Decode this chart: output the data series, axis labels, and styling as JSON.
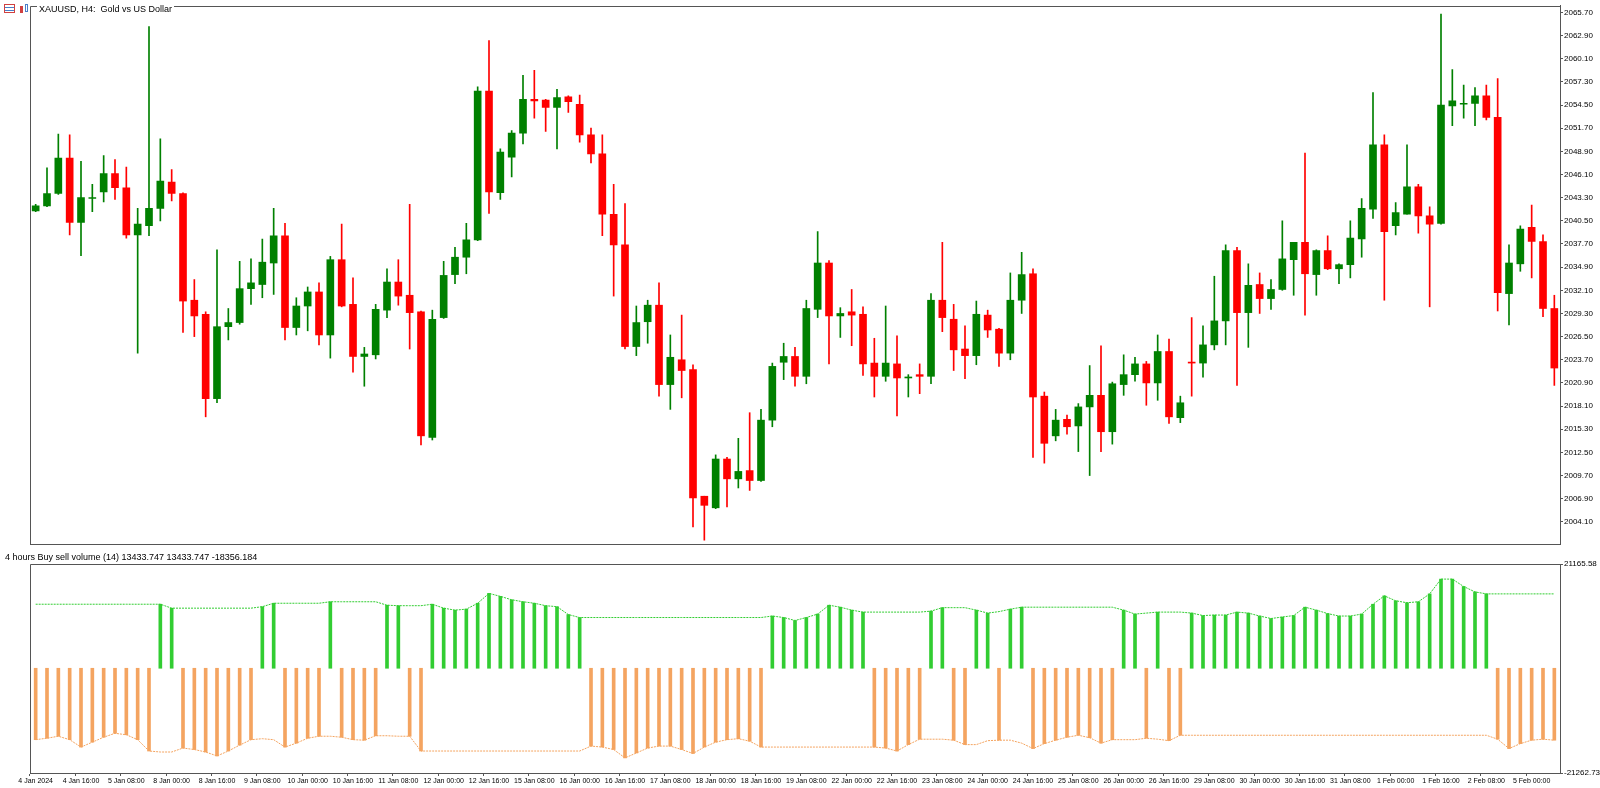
{
  "chart_data": [
    {
      "type": "candlestick",
      "title": "XAUUSD, H4:  Gold vs US Dollar",
      "ohlc": [
        [
          2041.7,
          2042.5,
          2041.6,
          2042.3
        ],
        [
          2042.3,
          2046.9,
          2042.2,
          2043.8
        ],
        [
          2043.8,
          2051.0,
          2043.7,
          2048.1
        ],
        [
          2048.1,
          2050.9,
          2038.8,
          2040.3
        ],
        [
          2040.3,
          2047.7,
          2036.3,
          2043.3
        ],
        [
          2043.2,
          2044.9,
          2041.6,
          2043.3
        ],
        [
          2044.0,
          2048.4,
          2042.8,
          2046.2
        ],
        [
          2046.2,
          2047.9,
          2043.1,
          2044.5
        ],
        [
          2044.5,
          2047.0,
          2038.4,
          2038.8
        ],
        [
          2038.8,
          2042.0,
          2024.5,
          2040.1
        ],
        [
          2039.9,
          2064.0,
          2038.7,
          2042.0
        ],
        [
          2042.0,
          2050.4,
          2040.5,
          2045.3
        ],
        [
          2045.2,
          2046.7,
          2042.9,
          2043.8
        ],
        [
          2043.8,
          2043.9,
          2027.0,
          2030.8
        ],
        [
          2030.9,
          2033.4,
          2026.5,
          2029.0
        ],
        [
          2029.2,
          2029.5,
          2016.8,
          2019.0
        ],
        [
          2019.0,
          2037.0,
          2018.5,
          2027.7
        ],
        [
          2027.7,
          2029.9,
          2026.1,
          2028.2
        ],
        [
          2028.2,
          2035.6,
          2028.0,
          2032.3
        ],
        [
          2032.3,
          2035.9,
          2030.4,
          2033.0
        ],
        [
          2032.8,
          2038.3,
          2031.2,
          2035.5
        ],
        [
          2035.4,
          2042.0,
          2031.6,
          2038.7
        ],
        [
          2038.7,
          2040.2,
          2026.1,
          2027.6
        ],
        [
          2027.6,
          2031.2,
          2026.7,
          2030.2
        ],
        [
          2030.2,
          2032.5,
          2027.2,
          2031.9
        ],
        [
          2031.9,
          2033.0,
          2025.5,
          2026.7
        ],
        [
          2026.7,
          2036.2,
          2023.9,
          2035.8
        ],
        [
          2035.8,
          2040.1,
          2030.1,
          2030.2
        ],
        [
          2030.4,
          2033.6,
          2022.2,
          2024.1
        ],
        [
          2024.1,
          2025.2,
          2020.5,
          2024.4
        ],
        [
          2024.3,
          2030.4,
          2023.8,
          2029.8
        ],
        [
          2029.7,
          2034.7,
          2028.8,
          2033.1
        ],
        [
          2033.1,
          2035.8,
          2030.3,
          2031.4
        ],
        [
          2031.5,
          2042.5,
          2025.0,
          2029.4
        ],
        [
          2029.5,
          2029.6,
          2013.4,
          2014.5
        ],
        [
          2014.3,
          2029.7,
          2014.0,
          2028.6
        ],
        [
          2028.8,
          2035.6,
          2028.7,
          2033.9
        ],
        [
          2034.0,
          2037.3,
          2032.9,
          2036.1
        ],
        [
          2036.1,
          2040.2,
          2034.1,
          2038.2
        ],
        [
          2038.2,
          2056.7,
          2038.1,
          2056.2
        ],
        [
          2056.2,
          2062.3,
          2041.4,
          2044.0
        ],
        [
          2043.9,
          2049.2,
          2043.1,
          2048.8
        ],
        [
          2048.2,
          2051.4,
          2045.8,
          2051.1
        ],
        [
          2051.1,
          2058.1,
          2049.8,
          2055.2
        ],
        [
          2055.2,
          2058.7,
          2052.9,
          2055.0
        ],
        [
          2055.1,
          2055.2,
          2051.3,
          2054.2
        ],
        [
          2054.2,
          2056.4,
          2049.2,
          2055.4
        ],
        [
          2055.5,
          2055.6,
          2053.6,
          2054.9
        ],
        [
          2054.6,
          2055.7,
          2050.0,
          2050.9
        ],
        [
          2050.9,
          2051.7,
          2047.5,
          2048.6
        ],
        [
          2048.6,
          2050.9,
          2038.7,
          2041.3
        ],
        [
          2041.3,
          2044.9,
          2031.4,
          2037.6
        ],
        [
          2037.6,
          2042.6,
          2025.0,
          2025.3
        ],
        [
          2025.3,
          2030.2,
          2024.2,
          2028.2
        ],
        [
          2028.3,
          2030.9,
          2025.7,
          2030.3
        ],
        [
          2030.3,
          2033.0,
          2019.3,
          2020.7
        ],
        [
          2020.7,
          2026.7,
          2017.7,
          2024.0
        ],
        [
          2023.7,
          2029.1,
          2019.1,
          2022.4
        ],
        [
          2022.5,
          2023.1,
          2003.5,
          2007.0
        ],
        [
          2007.2,
          2007.2,
          2001.9,
          2006.1
        ],
        [
          2005.8,
          2012.2,
          2005.7,
          2011.7
        ],
        [
          2011.7,
          2011.9,
          2005.9,
          2009.3
        ],
        [
          2009.3,
          2014.2,
          2008.2,
          2010.2
        ],
        [
          2010.3,
          2017.3,
          2007.9,
          2009.1
        ],
        [
          2009.1,
          2017.7,
          2009.0,
          2016.4
        ],
        [
          2016.4,
          2023.3,
          2015.6,
          2022.9
        ],
        [
          2023.4,
          2025.7,
          2021.3,
          2024.1
        ],
        [
          2024.1,
          2025.2,
          2020.5,
          2021.7
        ],
        [
          2021.7,
          2030.9,
          2020.8,
          2029.9
        ],
        [
          2029.8,
          2039.2,
          2028.8,
          2035.4
        ],
        [
          2035.4,
          2035.7,
          2023.2,
          2029.0
        ],
        [
          2029.0,
          2030.0,
          2026.4,
          2029.3
        ],
        [
          2029.5,
          2032.2,
          2025.4,
          2029.1
        ],
        [
          2029.2,
          2030.1,
          2021.8,
          2023.2
        ],
        [
          2023.3,
          2026.3,
          2019.2,
          2021.7
        ],
        [
          2021.7,
          2030.2,
          2021.1,
          2023.3
        ],
        [
          2023.2,
          2026.6,
          2016.9,
          2021.5
        ],
        [
          2021.5,
          2021.9,
          2019.2,
          2021.6
        ],
        [
          2021.9,
          2023.2,
          2019.6,
          2021.7
        ],
        [
          2021.7,
          2031.7,
          2020.8,
          2030.9
        ],
        [
          2030.9,
          2037.9,
          2027.1,
          2028.8
        ],
        [
          2028.6,
          2030.4,
          2022.4,
          2024.9
        ],
        [
          2025.0,
          2027.8,
          2021.4,
          2024.2
        ],
        [
          2024.2,
          2030.8,
          2023.1,
          2029.2
        ],
        [
          2029.1,
          2029.7,
          2026.4,
          2027.3
        ],
        [
          2027.4,
          2027.5,
          2022.9,
          2024.5
        ],
        [
          2024.5,
          2034.2,
          2023.7,
          2030.9
        ],
        [
          2030.9,
          2036.7,
          2029.3,
          2034.0
        ],
        [
          2034.1,
          2034.7,
          2011.9,
          2019.2
        ],
        [
          2019.3,
          2019.8,
          2011.2,
          2013.6
        ],
        [
          2014.5,
          2017.7,
          2013.9,
          2016.4
        ],
        [
          2016.5,
          2017.0,
          2014.7,
          2015.6
        ],
        [
          2015.7,
          2018.4,
          2012.6,
          2018.0
        ],
        [
          2018.0,
          2023.0,
          2009.7,
          2019.4
        ],
        [
          2019.4,
          2025.4,
          2012.6,
          2015.0
        ],
        [
          2015.0,
          2021.0,
          2013.5,
          2020.8
        ],
        [
          2020.7,
          2024.3,
          2019.4,
          2021.9
        ],
        [
          2021.9,
          2024.0,
          2021.1,
          2023.2
        ],
        [
          2023.2,
          2023.5,
          2018.2,
          2020.9
        ],
        [
          2020.9,
          2026.7,
          2018.8,
          2024.7
        ],
        [
          2024.7,
          2026.2,
          2016.0,
          2016.8
        ],
        [
          2016.7,
          2019.3,
          2016.1,
          2018.5
        ],
        [
          2023.4,
          2028.8,
          2019.3,
          2023.3
        ],
        [
          2023.3,
          2027.8,
          2021.6,
          2025.5
        ],
        [
          2025.5,
          2033.8,
          2024.9,
          2028.4
        ],
        [
          2028.4,
          2037.6,
          2025.5,
          2036.9
        ],
        [
          2036.9,
          2037.3,
          2020.6,
          2029.4
        ],
        [
          2029.4,
          2035.3,
          2025.2,
          2032.7
        ],
        [
          2032.8,
          2034.2,
          2029.3,
          2031.1
        ],
        [
          2031.1,
          2033.4,
          2029.8,
          2032.2
        ],
        [
          2032.2,
          2040.5,
          2032.1,
          2035.9
        ],
        [
          2035.8,
          2037.9,
          2031.5,
          2037.9
        ],
        [
          2037.9,
          2048.7,
          2029.1,
          2034.1
        ],
        [
          2034.0,
          2037.0,
          2031.5,
          2036.9
        ],
        [
          2036.9,
          2038.7,
          2034.6,
          2034.7
        ],
        [
          2034.7,
          2035.3,
          2032.9,
          2035.2
        ],
        [
          2035.2,
          2040.5,
          2033.6,
          2038.4
        ],
        [
          2038.3,
          2043.2,
          2036.1,
          2042.0
        ],
        [
          2041.9,
          2056.0,
          2040.8,
          2049.7
        ],
        [
          2049.7,
          2050.9,
          2030.9,
          2039.2
        ],
        [
          2039.9,
          2042.7,
          2038.8,
          2041.5
        ],
        [
          2041.3,
          2049.7,
          2041.3,
          2044.6
        ],
        [
          2044.6,
          2044.9,
          2039.0,
          2041.1
        ],
        [
          2041.1,
          2042.2,
          2030.1,
          2040.1
        ],
        [
          2040.2,
          2065.5,
          2040.1,
          2054.5
        ],
        [
          2054.4,
          2058.8,
          2052.0,
          2055.0
        ],
        [
          2054.6,
          2056.9,
          2052.9,
          2054.7
        ],
        [
          2054.7,
          2056.6,
          2052.0,
          2055.6
        ],
        [
          2055.6,
          2056.9,
          2052.7,
          2053.0
        ],
        [
          2053.0,
          2057.7,
          2029.6,
          2031.8
        ],
        [
          2031.7,
          2037.6,
          2027.9,
          2035.4
        ],
        [
          2035.3,
          2039.9,
          2034.4,
          2039.5
        ],
        [
          2039.7,
          2042.4,
          2033.6,
          2038.0
        ],
        [
          2038.0,
          2038.8,
          2028.9,
          2029.9
        ],
        [
          2029.9,
          2031.5,
          2020.6,
          2022.7
        ]
      ],
      "colors": [
        "#008000",
        "#008000",
        "#008000",
        "#ff0000",
        "#008000",
        "#008000",
        "#008000",
        "#ff0000",
        "#ff0000",
        "#008000",
        "#008000",
        "#008000",
        "#ff0000",
        "#ff0000",
        "#ff0000",
        "#ff0000",
        "#008000",
        "#008000",
        "#008000",
        "#008000",
        "#008000",
        "#008000",
        "#ff0000",
        "#008000",
        "#008000",
        "#ff0000",
        "#008000",
        "#ff0000",
        "#ff0000",
        "#008000",
        "#008000",
        "#008000",
        "#ff0000",
        "#ff0000",
        "#ff0000",
        "#008000",
        "#008000",
        "#008000",
        "#008000",
        "#008000",
        "#ff0000",
        "#008000",
        "#008000",
        "#008000",
        "#ff0000",
        "#ff0000",
        "#008000",
        "#ff0000",
        "#ff0000",
        "#ff0000",
        "#ff0000",
        "#ff0000",
        "#ff0000",
        "#008000",
        "#008000",
        "#ff0000",
        "#008000",
        "#ff0000",
        "#ff0000",
        "#ff0000",
        "#008000",
        "#ff0000",
        "#008000",
        "#ff0000",
        "#008000",
        "#008000",
        "#008000",
        "#ff0000",
        "#008000",
        "#008000",
        "#ff0000",
        "#008000",
        "#ff0000",
        "#ff0000",
        "#ff0000",
        "#008000",
        "#ff0000",
        "#008000",
        "#ff0000",
        "#008000",
        "#ff0000",
        "#ff0000",
        "#ff0000",
        "#008000",
        "#ff0000",
        "#ff0000",
        "#008000",
        "#008000",
        "#ff0000",
        "#ff0000",
        "#008000",
        "#ff0000",
        "#008000",
        "#008000",
        "#ff0000",
        "#008000",
        "#008000",
        "#008000",
        "#ff0000",
        "#008000",
        "#ff0000",
        "#008000",
        "#ff0000",
        "#008000",
        "#008000",
        "#008000",
        "#ff0000",
        "#008000",
        "#ff0000",
        "#008000",
        "#008000",
        "#008000",
        "#ff0000",
        "#008000",
        "#ff0000",
        "#008000",
        "#008000",
        "#008000",
        "#008000",
        "#ff0000",
        "#008000",
        "#008000",
        "#ff0000",
        "#ff0000",
        "#008000",
        "#008000",
        "#008000",
        "#008000",
        "#ff0000",
        "#ff0000",
        "#008000",
        "#008000",
        "#ff0000",
        "#ff0000",
        "#ff0000"
      ],
      "ylim": [
        2001.4,
        2066.5
      ],
      "yticks": [
        {
          "value": 2004.1,
          "label": "2004.10"
        },
        {
          "value": 2006.9,
          "label": "2006.90"
        },
        {
          "value": 2009.7,
          "label": "2009.70"
        },
        {
          "value": 2012.5,
          "label": "2012.50"
        },
        {
          "value": 2015.3,
          "label": "2015.30"
        },
        {
          "value": 2018.1,
          "label": "2018.10"
        },
        {
          "value": 2020.9,
          "label": "2020.90"
        },
        {
          "value": 2023.7,
          "label": "2023.70"
        },
        {
          "value": 2026.5,
          "label": "2026.50"
        },
        {
          "value": 2029.3,
          "label": "2029.30"
        },
        {
          "value": 2032.1,
          "label": "2032.10"
        },
        {
          "value": 2034.9,
          "label": "2034.90"
        },
        {
          "value": 2037.7,
          "label": "2037.70"
        },
        {
          "value": 2040.5,
          "label": "2040.50"
        },
        {
          "value": 2043.3,
          "label": "2043.30"
        },
        {
          "value": 2046.1,
          "label": "2046.10"
        },
        {
          "value": 2048.9,
          "label": "2048.90"
        },
        {
          "value": 2051.7,
          "label": "2051.70"
        },
        {
          "value": 2054.5,
          "label": "2054.50"
        },
        {
          "value": 2057.3,
          "label": "2057.30"
        },
        {
          "value": 2060.1,
          "label": "2060.10"
        },
        {
          "value": 2062.9,
          "label": "2062.90"
        },
        {
          "value": 2065.7,
          "label": "2065.70"
        }
      ],
      "tick_labels": "y"
    },
    {
      "type": "bar",
      "title": "4 hours Buy sell volume (14) 13433.747 13433.747 -18356.184",
      "categories": [
        "4 Jan 2024",
        null,
        null,
        null,
        "4 Jan 16:00",
        null,
        null,
        null,
        "5 Jan 08:00",
        null,
        null,
        null,
        "8 Jan 00:00",
        null,
        null,
        null,
        "8 Jan 16:00",
        null,
        null,
        null,
        "9 Jan 08:00",
        null,
        null,
        null,
        "10 Jan 00:00",
        null,
        null,
        null,
        "10 Jan 16:00",
        null,
        null,
        null,
        "11 Jan 08:00",
        null,
        null,
        null,
        "12 Jan 00:00",
        null,
        null,
        null,
        "12 Jan 16:00",
        null,
        null,
        null,
        "15 Jan 08:00",
        null,
        null,
        null,
        "16 Jan 00:00",
        null,
        null,
        null,
        "16 Jan 16:00",
        null,
        null,
        null,
        "17 Jan 08:00",
        null,
        null,
        null,
        "18 Jan 00:00",
        null,
        null,
        null,
        "18 Jan 16:00",
        null,
        null,
        null,
        "19 Jan 08:00",
        null,
        null,
        null,
        "22 Jan 00:00",
        null,
        null,
        null,
        "22 Jan 16:00",
        null,
        null,
        null,
        "23 Jan 08:00",
        null,
        null,
        null,
        "24 Jan 00:00",
        null,
        null,
        null,
        "24 Jan 16:00",
        null,
        null,
        null,
        "25 Jan 08:00",
        null,
        null,
        null,
        "26 Jan 00:00",
        null,
        null,
        null,
        "26 Jan 16:00",
        null,
        null,
        null,
        "29 Jan 08:00",
        null,
        null,
        null,
        "30 Jan 00:00",
        null,
        null,
        null,
        "30 Jan 16:00",
        null,
        null,
        null,
        "31 Jan 08:00",
        null,
        null,
        null,
        "1 Feb 00:00",
        null,
        null,
        null,
        "1 Feb 16:00",
        null,
        null,
        null,
        "2 Feb 08:00",
        null,
        null,
        null,
        "5 Feb 00:00",
        null,
        null
      ],
      "series": [
        {
          "type": "bar",
          "color": "#32cd32",
          "values": [
            null,
            null,
            null,
            null,
            null,
            null,
            null,
            null,
            null,
            null,
            null,
            13000,
            12200,
            null,
            null,
            null,
            null,
            null,
            null,
            null,
            12500,
            13200,
            null,
            null,
            null,
            null,
            13500,
            null,
            null,
            null,
            null,
            12800,
            12700,
            null,
            null,
            13000,
            12200,
            11800,
            12000,
            13200,
            15200,
            14600,
            13900,
            13500,
            13200,
            12700,
            12500,
            10900,
            10300,
            null,
            null,
            null,
            null,
            null,
            null,
            null,
            null,
            null,
            null,
            null,
            null,
            null,
            null,
            null,
            null,
            10600,
            10300,
            9700,
            10300,
            11000,
            12800,
            12400,
            11800,
            11400,
            null,
            null,
            null,
            null,
            null,
            11600,
            12300,
            null,
            null,
            11800,
            11200,
            null,
            12000,
            12400,
            null,
            null,
            null,
            null,
            null,
            null,
            null,
            null,
            11800,
            11000,
            null,
            11400,
            null,
            null,
            11200,
            10700,
            10800,
            10800,
            11400,
            11200,
            10600,
            10100,
            10400,
            10700,
            12400,
            11800,
            11100,
            10600,
            10600,
            11000,
            13000,
            14700,
            13700,
            13300,
            13500,
            15100,
            18100,
            18100,
            16600,
            15500,
            15100,
            null,
            null,
            null,
            null,
            null,
            null
          ]
        },
        {
          "type": "bar",
          "color": "#f4a460",
          "values": [
            -14500,
            -14200,
            -13800,
            -14500,
            -16000,
            -15000,
            -14000,
            -13200,
            -13500,
            -14500,
            -16800,
            null,
            null,
            -16200,
            -16500,
            -17000,
            -17800,
            -16800,
            -15600,
            -14500,
            null,
            null,
            -16000,
            -15200,
            -14200,
            -13800,
            null,
            -14000,
            -14500,
            -14600,
            -13700,
            null,
            null,
            -13800,
            -16800,
            null,
            null,
            null,
            null,
            null,
            null,
            null,
            null,
            null,
            null,
            null,
            null,
            null,
            null,
            -15800,
            -16000,
            -16500,
            -18200,
            -17200,
            -16200,
            -15800,
            -15800,
            -16500,
            -17300,
            -16000,
            -15000,
            -14500,
            -14300,
            -14800,
            -16000,
            null,
            null,
            null,
            null,
            null,
            null,
            null,
            null,
            null,
            -16000,
            -16200,
            -16800,
            -15500,
            -14400,
            null,
            null,
            -14600,
            -15500,
            null,
            null,
            -14600,
            null,
            null,
            -16300,
            -15300,
            -14600,
            -14000,
            -13600,
            -14100,
            -15200,
            -14500,
            null,
            null,
            -14200,
            null,
            -14700,
            -13600,
            null,
            null,
            null,
            null,
            null,
            null,
            null,
            null,
            null,
            null,
            null,
            null,
            null,
            null,
            null,
            null,
            null,
            null,
            null,
            null,
            null,
            null,
            null,
            null,
            null,
            null,
            null,
            -14400,
            -16300,
            -15300,
            -14600,
            -14400,
            -14600
          ]
        },
        {
          "type": "line",
          "color": "#32cd32",
          "line_style": "dashed",
          "values": [
            13000,
            13000,
            13000,
            13000,
            13000,
            13000,
            13000,
            13000,
            13000,
            13000,
            13000,
            13000,
            12200,
            12200,
            12200,
            12200,
            12200,
            12200,
            12200,
            12200,
            12500,
            13200,
            13200,
            13200,
            13200,
            13200,
            13500,
            13500,
            13500,
            13500,
            13500,
            12800,
            12700,
            12700,
            12700,
            13000,
            12200,
            11800,
            12000,
            13200,
            15200,
            14600,
            13900,
            13500,
            13200,
            12700,
            12500,
            10900,
            10300,
            10300,
            10300,
            10300,
            10300,
            10300,
            10300,
            10300,
            10300,
            10300,
            10300,
            10300,
            10300,
            10300,
            10300,
            10300,
            10300,
            10600,
            10300,
            9700,
            10300,
            11000,
            12800,
            12400,
            11800,
            11400,
            11400,
            11400,
            11400,
            11400,
            11400,
            11600,
            12300,
            12300,
            12300,
            11800,
            11200,
            11500,
            12000,
            12400,
            12400,
            12400,
            12400,
            12400,
            12400,
            12400,
            12400,
            12400,
            11800,
            11000,
            11200,
            11400,
            11400,
            11400,
            11200,
            10700,
            10800,
            10800,
            11400,
            11200,
            10600,
            10100,
            10400,
            10700,
            12400,
            11800,
            11100,
            10600,
            10600,
            11000,
            13000,
            14700,
            13700,
            13300,
            13500,
            15100,
            18100,
            18100,
            16600,
            15500,
            15100,
            15100,
            15100,
            15100,
            15100,
            15100,
            15100
          ]
        },
        {
          "type": "line",
          "color": "#f4a460",
          "line_style": "dashed",
          "values": [
            -14500,
            -14200,
            -13800,
            -14500,
            -16000,
            -15000,
            -14000,
            -13200,
            -13500,
            -14500,
            -16800,
            -17000,
            -17000,
            -16200,
            -16500,
            -17000,
            -17800,
            -16800,
            -15600,
            -14500,
            -14300,
            -14500,
            -16000,
            -15200,
            -14200,
            -13800,
            -13800,
            -14000,
            -14500,
            -14600,
            -13700,
            -13700,
            -13800,
            -13800,
            -16800,
            -16800,
            -16800,
            -16800,
            -16800,
            -16800,
            -16800,
            -16800,
            -16800,
            -16800,
            -16800,
            -16800,
            -16800,
            -16800,
            -16800,
            -15800,
            -16000,
            -16500,
            -18200,
            -17200,
            -16200,
            -15800,
            -15800,
            -16500,
            -17300,
            -16000,
            -15000,
            -14500,
            -14300,
            -14800,
            -16000,
            -16000,
            -16000,
            -16000,
            -16000,
            -16000,
            -16000,
            -16000,
            -16000,
            -16000,
            -16000,
            -16200,
            -16800,
            -15500,
            -14400,
            -14400,
            -14400,
            -14600,
            -15500,
            -15500,
            -14700,
            -14600,
            -14600,
            -15200,
            -16300,
            -15300,
            -14600,
            -14000,
            -13600,
            -14100,
            -15200,
            -14500,
            -14500,
            -14500,
            -14200,
            -14400,
            -14700,
            -13600,
            -13600,
            -13600,
            -13600,
            -13600,
            -13600,
            -13600,
            -13600,
            -13600,
            -13600,
            -13600,
            -13600,
            -13600,
            -13600,
            -13600,
            -13600,
            -13600,
            -13600,
            -13600,
            -13600,
            -13600,
            -13600,
            -13600,
            -13600,
            -13600,
            -13600,
            -13600,
            -13600,
            -14400,
            -16300,
            -15300,
            -14600,
            -14400,
            -14600
          ]
        }
      ],
      "ylim": [
        -21262.73,
        21165.58
      ],
      "yticks": [
        21165.58,
        -21262.73
      ],
      "marker": "none"
    }
  ]
}
